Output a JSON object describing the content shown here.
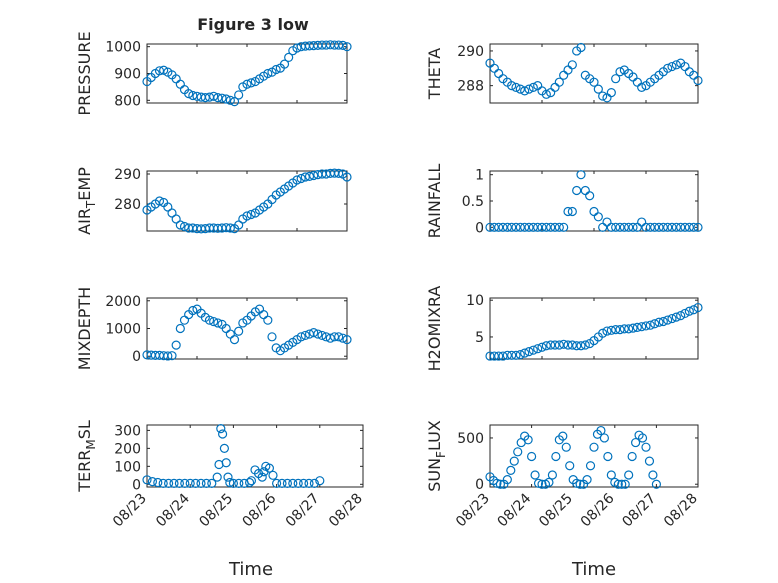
{
  "figure": {
    "title": "Figure 3 low",
    "xlabel": "Time"
  },
  "colors": {
    "marker": "#0072bd",
    "axis": "#262626",
    "grid": "#d0d0d0",
    "background": "#ffffff"
  },
  "chart_data": [
    {
      "type": "scatter",
      "ylabel": "PRESSURE",
      "ylabel_sub": "",
      "ylim": [
        790,
        1010
      ],
      "yticks": [
        800,
        900,
        1000
      ],
      "xlim": [
        "08/23",
        "08/27"
      ],
      "x": [
        "08/23 00:00",
        "08/23 02:00",
        "08/23 04:00",
        "08/23 06:00",
        "08/23 08:00",
        "08/23 10:00",
        "08/23 12:00",
        "08/23 14:00",
        "08/23 16:00",
        "08/23 18:00",
        "08/23 20:00",
        "08/23 22:00",
        "08/24 00:00",
        "08/24 02:00",
        "08/24 04:00",
        "08/24 06:00",
        "08/24 08:00",
        "08/24 10:00",
        "08/24 12:00",
        "08/24 14:00",
        "08/24 16:00",
        "08/24 18:00",
        "08/24 20:00",
        "08/24 22:00",
        "08/25 00:00",
        "08/25 02:00",
        "08/25 04:00",
        "08/25 06:00",
        "08/25 08:00",
        "08/25 10:00",
        "08/25 12:00",
        "08/25 14:00",
        "08/25 16:00",
        "08/25 18:00",
        "08/25 20:00",
        "08/25 22:00",
        "08/26 00:00",
        "08/26 02:00",
        "08/26 04:00",
        "08/26 06:00",
        "08/26 08:00",
        "08/26 10:00",
        "08/26 12:00",
        "08/26 14:00",
        "08/26 16:00",
        "08/26 18:00",
        "08/26 20:00",
        "08/26 22:00",
        "08/27 00:00"
      ],
      "y": [
        870,
        885,
        900,
        910,
        912,
        905,
        895,
        880,
        860,
        840,
        825,
        818,
        815,
        812,
        810,
        812,
        815,
        810,
        808,
        805,
        800,
        795,
        820,
        850,
        860,
        865,
        870,
        880,
        890,
        900,
        905,
        915,
        920,
        935,
        960,
        985,
        995,
        1000,
        1002,
        1003,
        1004,
        1005,
        1006,
        1006,
        1007,
        1006,
        1006,
        1005,
        1000
      ]
    },
    {
      "type": "scatter",
      "ylabel": "THETA",
      "ylabel_sub": "",
      "ylim": [
        287.0,
        290.4
      ],
      "yticks": [
        288,
        290
      ],
      "xlim": [
        "08/23",
        "08/27"
      ],
      "x": [
        "08/23 00:00",
        "08/23 02:00",
        "08/23 04:00",
        "08/23 06:00",
        "08/23 08:00",
        "08/23 10:00",
        "08/23 12:00",
        "08/23 14:00",
        "08/23 16:00",
        "08/23 18:00",
        "08/23 20:00",
        "08/23 22:00",
        "08/24 00:00",
        "08/24 02:00",
        "08/24 04:00",
        "08/24 06:00",
        "08/24 08:00",
        "08/24 10:00",
        "08/24 12:00",
        "08/24 14:00",
        "08/24 16:00",
        "08/24 18:00",
        "08/24 20:00",
        "08/24 22:00",
        "08/25 00:00",
        "08/25 02:00",
        "08/25 04:00",
        "08/25 06:00",
        "08/25 08:00",
        "08/25 10:00",
        "08/25 12:00",
        "08/25 14:00",
        "08/25 16:00",
        "08/25 18:00",
        "08/25 20:00",
        "08/25 22:00",
        "08/26 00:00",
        "08/26 02:00",
        "08/26 04:00",
        "08/26 06:00",
        "08/26 08:00",
        "08/26 10:00",
        "08/26 12:00",
        "08/26 14:00",
        "08/26 16:00",
        "08/26 18:00",
        "08/26 20:00",
        "08/26 22:00",
        "08/27 00:00"
      ],
      "y": [
        289.3,
        289.0,
        288.7,
        288.4,
        288.2,
        288.0,
        287.9,
        287.8,
        287.7,
        287.8,
        287.9,
        288.0,
        287.7,
        287.5,
        287.6,
        287.9,
        288.2,
        288.6,
        288.9,
        289.2,
        290.0,
        290.2,
        288.6,
        288.4,
        288.2,
        287.8,
        287.4,
        287.3,
        287.6,
        288.4,
        288.8,
        288.9,
        288.7,
        288.5,
        288.2,
        287.9,
        288.0,
        288.2,
        288.4,
        288.6,
        288.8,
        289.0,
        289.1,
        289.2,
        289.3,
        289.1,
        288.8,
        288.6,
        288.3
      ]
    },
    {
      "type": "scatter",
      "ylabel": "AIR",
      "ylabel_sub": "T",
      "ylabel_suffix": "EMP",
      "ylim": [
        271,
        291
      ],
      "yticks": [
        280,
        290
      ],
      "xlim": [
        "08/23",
        "08/27"
      ],
      "x": [
        "08/23 00:00",
        "08/23 02:00",
        "08/23 04:00",
        "08/23 06:00",
        "08/23 08:00",
        "08/23 10:00",
        "08/23 12:00",
        "08/23 14:00",
        "08/23 16:00",
        "08/23 18:00",
        "08/23 20:00",
        "08/23 22:00",
        "08/24 00:00",
        "08/24 02:00",
        "08/24 04:00",
        "08/24 06:00",
        "08/24 08:00",
        "08/24 10:00",
        "08/24 12:00",
        "08/24 14:00",
        "08/24 16:00",
        "08/24 18:00",
        "08/24 20:00",
        "08/24 22:00",
        "08/25 00:00",
        "08/25 02:00",
        "08/25 04:00",
        "08/25 06:00",
        "08/25 08:00",
        "08/25 10:00",
        "08/25 12:00",
        "08/25 14:00",
        "08/25 16:00",
        "08/25 18:00",
        "08/25 20:00",
        "08/25 22:00",
        "08/26 00:00",
        "08/26 02:00",
        "08/26 04:00",
        "08/26 06:00",
        "08/26 08:00",
        "08/26 10:00",
        "08/26 12:00",
        "08/26 14:00",
        "08/26 16:00",
        "08/26 18:00",
        "08/26 20:00",
        "08/26 22:00",
        "08/27 00:00"
      ],
      "y": [
        278,
        279,
        280,
        281,
        280.5,
        279,
        277,
        275,
        273,
        272.5,
        272,
        272,
        271.8,
        271.7,
        271.8,
        272,
        272,
        271.9,
        272,
        272.1,
        272,
        271.8,
        273,
        275,
        276,
        276.5,
        277,
        278,
        279,
        280,
        281.5,
        283,
        284,
        285,
        286,
        287,
        288,
        288.5,
        289,
        289.2,
        289.5,
        289.8,
        290,
        290,
        290.2,
        290.3,
        290.2,
        290,
        289
      ]
    },
    {
      "type": "scatter",
      "ylabel": "RAINFALL",
      "ylabel_sub": "",
      "ylim": [
        -0.07,
        1.07
      ],
      "yticks": [
        0,
        0.5,
        1
      ],
      "xlim": [
        "08/23",
        "08/27"
      ],
      "x": [
        "08/23 00:00",
        "08/23 02:00",
        "08/23 04:00",
        "08/23 06:00",
        "08/23 08:00",
        "08/23 10:00",
        "08/23 12:00",
        "08/23 14:00",
        "08/23 16:00",
        "08/23 18:00",
        "08/23 20:00",
        "08/23 22:00",
        "08/24 00:00",
        "08/24 02:00",
        "08/24 04:00",
        "08/24 06:00",
        "08/24 08:00",
        "08/24 10:00",
        "08/24 12:00",
        "08/24 14:00",
        "08/24 16:00",
        "08/24 18:00",
        "08/24 20:00",
        "08/24 22:00",
        "08/25 00:00",
        "08/25 02:00",
        "08/25 04:00",
        "08/25 06:00",
        "08/25 08:00",
        "08/25 10:00",
        "08/25 12:00",
        "08/25 14:00",
        "08/25 16:00",
        "08/25 18:00",
        "08/25 20:00",
        "08/25 22:00",
        "08/26 00:00",
        "08/26 02:00",
        "08/26 04:00",
        "08/26 06:00",
        "08/26 08:00",
        "08/26 10:00",
        "08/26 12:00",
        "08/26 14:00",
        "08/26 16:00",
        "08/26 18:00",
        "08/26 20:00",
        "08/26 22:00",
        "08/27 00:00"
      ],
      "y": [
        0,
        0,
        0,
        0,
        0,
        0,
        0,
        0,
        0,
        0,
        0,
        0,
        0,
        0,
        0,
        0,
        0,
        0,
        0.3,
        0.3,
        0.7,
        1.0,
        0.7,
        0.6,
        0.3,
        0.2,
        0,
        0.1,
        0,
        0,
        0,
        0,
        0,
        0,
        0,
        0.1,
        0,
        0,
        0,
        0,
        0,
        0,
        0,
        0,
        0,
        0,
        0,
        0,
        0
      ]
    },
    {
      "type": "scatter",
      "ylabel": "MIXDEPTH",
      "ylabel_sub": "",
      "ylim": [
        -100,
        2100
      ],
      "yticks": [
        0,
        1000,
        2000
      ],
      "xlim": [
        "08/23",
        "08/27"
      ],
      "x": [
        "08/23 00:00",
        "08/23 02:00",
        "08/23 04:00",
        "08/23 06:00",
        "08/23 08:00",
        "08/23 10:00",
        "08/23 12:00",
        "08/23 14:00",
        "08/23 16:00",
        "08/23 18:00",
        "08/23 20:00",
        "08/23 22:00",
        "08/24 00:00",
        "08/24 02:00",
        "08/24 04:00",
        "08/24 06:00",
        "08/24 08:00",
        "08/24 10:00",
        "08/24 12:00",
        "08/24 14:00",
        "08/24 16:00",
        "08/24 18:00",
        "08/24 20:00",
        "08/24 22:00",
        "08/25 00:00",
        "08/25 02:00",
        "08/25 04:00",
        "08/25 06:00",
        "08/25 08:00",
        "08/25 10:00",
        "08/25 12:00",
        "08/25 14:00",
        "08/25 16:00",
        "08/25 18:00",
        "08/25 20:00",
        "08/25 22:00",
        "08/26 00:00",
        "08/26 02:00",
        "08/26 04:00",
        "08/26 06:00",
        "08/26 08:00",
        "08/26 10:00",
        "08/26 12:00",
        "08/26 14:00",
        "08/26 16:00",
        "08/26 18:00",
        "08/26 20:00",
        "08/26 22:00",
        "08/27 00:00"
      ],
      "y": [
        50,
        40,
        30,
        30,
        20,
        10,
        20,
        400,
        1000,
        1300,
        1500,
        1650,
        1700,
        1550,
        1400,
        1300,
        1250,
        1200,
        1150,
        1000,
        800,
        600,
        900,
        1200,
        1300,
        1450,
        1600,
        1700,
        1500,
        1300,
        700,
        300,
        200,
        300,
        400,
        500,
        600,
        700,
        750,
        800,
        850,
        800,
        750,
        700,
        650,
        700,
        700,
        650,
        600
      ]
    },
    {
      "type": "scatter",
      "ylabel": "H2OMIXRA",
      "ylabel_sub": "",
      "ylim": [
        2,
        10.3
      ],
      "yticks": [
        5,
        10
      ],
      "xlim": [
        "08/23",
        "08/27"
      ],
      "x": [
        "08/23 00:00",
        "08/23 02:00",
        "08/23 04:00",
        "08/23 06:00",
        "08/23 08:00",
        "08/23 10:00",
        "08/23 12:00",
        "08/23 14:00",
        "08/23 16:00",
        "08/23 18:00",
        "08/23 20:00",
        "08/23 22:00",
        "08/24 00:00",
        "08/24 02:00",
        "08/24 04:00",
        "08/24 06:00",
        "08/24 08:00",
        "08/24 10:00",
        "08/24 12:00",
        "08/24 14:00",
        "08/24 16:00",
        "08/24 18:00",
        "08/24 20:00",
        "08/24 22:00",
        "08/25 00:00",
        "08/25 02:00",
        "08/25 04:00",
        "08/25 06:00",
        "08/25 08:00",
        "08/25 10:00",
        "08/25 12:00",
        "08/25 14:00",
        "08/25 16:00",
        "08/25 18:00",
        "08/25 20:00",
        "08/25 22:00",
        "08/26 00:00",
        "08/26 02:00",
        "08/26 04:00",
        "08/26 06:00",
        "08/26 08:00",
        "08/26 10:00",
        "08/26 12:00",
        "08/26 14:00",
        "08/26 16:00",
        "08/26 18:00",
        "08/26 20:00",
        "08/26 22:00",
        "08/27 00:00"
      ],
      "y": [
        2.4,
        2.4,
        2.4,
        2.4,
        2.5,
        2.5,
        2.5,
        2.6,
        2.8,
        3.0,
        3.2,
        3.4,
        3.6,
        3.8,
        3.9,
        3.9,
        3.9,
        4.0,
        3.9,
        3.9,
        3.8,
        3.8,
        3.9,
        4.1,
        4.5,
        5.0,
        5.5,
        5.8,
        5.9,
        6.0,
        6.0,
        6.1,
        6.1,
        6.2,
        6.3,
        6.4,
        6.5,
        6.6,
        6.8,
        7.0,
        7.1,
        7.3,
        7.5,
        7.7,
        7.9,
        8.2,
        8.5,
        8.7,
        9.0
      ]
    },
    {
      "type": "scatter",
      "ylabel": "TERR",
      "ylabel_sub": "M",
      "ylabel_suffix": "SL",
      "ylim": [
        -15,
        330
      ],
      "yticks": [
        0,
        100,
        200,
        300
      ],
      "xlim": [
        "08/23",
        "08/28"
      ],
      "x": [
        "08/23 00:00",
        "08/23 03:00",
        "08/23 06:00",
        "08/23 09:00",
        "08/23 12:00",
        "08/23 15:00",
        "08/23 18:00",
        "08/23 21:00",
        "08/24 00:00",
        "08/24 03:00",
        "08/24 06:00",
        "08/24 09:00",
        "08/24 12:00",
        "08/24 15:00",
        "08/24 16:00",
        "08/24 17:00",
        "08/24 18:00",
        "08/24 19:00",
        "08/24 20:00",
        "08/24 21:00",
        "08/24 22:00",
        "08/25 00:00",
        "08/25 03:00",
        "08/25 06:00",
        "08/25 09:00",
        "08/25 10:00",
        "08/25 12:00",
        "08/25 14:00",
        "08/25 16:00",
        "08/25 17:00",
        "08/25 18:00",
        "08/25 20:00",
        "08/25 22:00",
        "08/26 00:00",
        "08/26 03:00",
        "08/26 06:00",
        "08/26 09:00",
        "08/26 12:00",
        "08/26 15:00",
        "08/26 18:00",
        "08/26 21:00",
        "08/27 00:00"
      ],
      "y": [
        25,
        15,
        10,
        5,
        5,
        5,
        5,
        5,
        5,
        5,
        5,
        5,
        5,
        40,
        110,
        310,
        280,
        200,
        120,
        40,
        10,
        5,
        5,
        5,
        10,
        20,
        80,
        60,
        40,
        70,
        100,
        90,
        50,
        5,
        5,
        5,
        5,
        5,
        5,
        5,
        5,
        20
      ]
    },
    {
      "type": "scatter",
      "ylabel": "SUN",
      "ylabel_sub": "F",
      "ylabel_suffix": "LUX",
      "ylim": [
        -30,
        640
      ],
      "yticks": [
        0,
        500
      ],
      "xlim": [
        "08/23",
        "08/28"
      ],
      "x": [
        "08/23 00:00",
        "08/23 02:00",
        "08/23 04:00",
        "08/23 06:00",
        "08/23 08:00",
        "08/23 10:00",
        "08/23 12:00",
        "08/23 14:00",
        "08/23 16:00",
        "08/23 18:00",
        "08/23 20:00",
        "08/23 22:00",
        "08/24 00:00",
        "08/24 02:00",
        "08/24 04:00",
        "08/24 06:00",
        "08/24 08:00",
        "08/24 10:00",
        "08/24 12:00",
        "08/24 14:00",
        "08/24 16:00",
        "08/24 18:00",
        "08/24 20:00",
        "08/24 22:00",
        "08/25 00:00",
        "08/25 02:00",
        "08/25 04:00",
        "08/25 06:00",
        "08/25 08:00",
        "08/25 10:00",
        "08/25 12:00",
        "08/25 14:00",
        "08/25 16:00",
        "08/25 18:00",
        "08/25 20:00",
        "08/25 22:00",
        "08/26 00:00",
        "08/26 02:00",
        "08/26 04:00",
        "08/26 06:00",
        "08/26 08:00",
        "08/26 10:00",
        "08/26 12:00",
        "08/26 14:00",
        "08/26 16:00",
        "08/26 18:00",
        "08/26 20:00",
        "08/26 22:00",
        "08/27 00:00"
      ],
      "y": [
        80,
        40,
        10,
        0,
        0,
        50,
        150,
        250,
        350,
        450,
        520,
        480,
        300,
        100,
        10,
        0,
        0,
        20,
        100,
        300,
        480,
        520,
        400,
        200,
        50,
        10,
        0,
        0,
        50,
        200,
        400,
        540,
        580,
        500,
        300,
        100,
        20,
        0,
        0,
        0,
        100,
        300,
        450,
        530,
        500,
        400,
        250,
        100,
        0
      ]
    }
  ]
}
